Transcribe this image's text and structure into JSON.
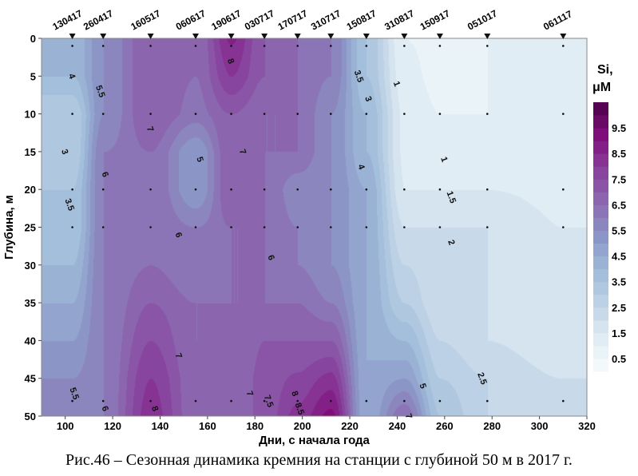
{
  "chart_data": {
    "type": "heatmap",
    "subtype": "filled-contour",
    "xlabel": "Дни, с начала года",
    "ylabel": "Глубина, м",
    "xlim": [
      90,
      320
    ],
    "ylim": [
      50,
      0
    ],
    "x_ticks": [
      100,
      120,
      140,
      160,
      180,
      200,
      220,
      240,
      260,
      280,
      300,
      320
    ],
    "y_ticks": [
      0,
      5,
      10,
      15,
      20,
      25,
      30,
      35,
      40,
      45,
      50
    ],
    "colorbar": {
      "title_line1": "Si,",
      "title_line2": "μM",
      "tick_labels": [
        "0.5",
        "1.5",
        "2.5",
        "3.5",
        "4.5",
        "5.5",
        "6.5",
        "7.5",
        "8.5",
        "9.5"
      ],
      "range": [
        0,
        10.5
      ],
      "step": 0.5,
      "colors": [
        "#f7fcfd",
        "#e0ecf4",
        "#bfd3e6",
        "#9ebcda",
        "#8c96c6",
        "#8c6bb1",
        "#88419d",
        "#810f7c",
        "#4d004b"
      ]
    },
    "stations": [
      {
        "label": "130417",
        "day": 103
      },
      {
        "label": "260417",
        "day": 116
      },
      {
        "label": "160517",
        "day": 136
      },
      {
        "label": "060617",
        "day": 155
      },
      {
        "label": "190617",
        "day": 170
      },
      {
        "label": "030717",
        "day": 184
      },
      {
        "label": "170717",
        "day": 198
      },
      {
        "label": "310717",
        "day": 212
      },
      {
        "label": "150817",
        "day": 227
      },
      {
        "label": "310817",
        "day": 243
      },
      {
        "label": "150917",
        "day": 258
      },
      {
        "label": "051017",
        "day": 278
      },
      {
        "label": "061117",
        "day": 310
      }
    ],
    "depths": [
      0,
      5,
      10,
      15,
      20,
      25,
      30,
      35,
      40,
      45,
      50
    ],
    "profiles": [
      [
        4,
        4,
        3,
        3,
        3.5,
        3.5,
        4,
        4.5,
        5,
        5.5,
        5.5
      ],
      [
        5.5,
        5.5,
        5.5,
        6,
        6,
        6,
        6,
        6,
        6,
        6,
        6
      ],
      [
        7,
        7,
        7,
        6.5,
        6.5,
        6.5,
        6.5,
        7,
        7.5,
        8,
        8.3
      ],
      [
        6.5,
        6.5,
        6.3,
        5,
        5,
        6,
        6,
        6.5,
        6.5,
        6.6,
        6.6
      ],
      [
        8.6,
        8,
        7,
        7,
        7,
        6.5,
        6.5,
        6.5,
        6.5,
        6.5,
        6.5
      ],
      [
        7,
        7,
        6.5,
        6.5,
        6.5,
        6.5,
        6.5,
        6.5,
        7,
        7.2,
        7.2
      ],
      [
        6.5,
        6.5,
        6.5,
        6.5,
        5.6,
        6,
        6,
        6.5,
        7,
        7.6,
        8.2
      ],
      [
        6,
        6,
        5.5,
        5.5,
        5.5,
        5.5,
        5.5,
        6,
        7,
        8.2,
        9.2
      ],
      [
        3.5,
        3.5,
        4,
        4,
        4.5,
        4.5,
        4.5,
        4.5,
        4.5,
        4.5,
        4.5
      ],
      [
        1,
        1.2,
        1.4,
        1.4,
        1.5,
        2,
        2.5,
        3,
        4,
        5,
        6.5
      ],
      [
        0.8,
        0.8,
        1,
        1,
        1.5,
        2,
        2,
        2,
        2.5,
        3,
        3.5
      ],
      [
        1,
        1,
        1,
        1,
        1.5,
        2,
        2,
        2,
        2,
        2.5,
        2.5
      ],
      [
        1,
        1,
        1,
        1,
        1.3,
        1.5,
        1.5,
        1.5,
        1.5,
        2,
        2
      ]
    ],
    "sample_depths": [
      1,
      10,
      20,
      25,
      48
    ],
    "contour_labels": [
      {
        "text": "4",
        "day": 103,
        "depth": 5
      },
      {
        "text": "5.5",
        "day": 115,
        "depth": 7
      },
      {
        "text": "3",
        "day": 100,
        "depth": 15
      },
      {
        "text": "3.5",
        "day": 102,
        "depth": 22
      },
      {
        "text": "6",
        "day": 117,
        "depth": 18
      },
      {
        "text": "7",
        "day": 136,
        "depth": 12
      },
      {
        "text": "6",
        "day": 148,
        "depth": 26
      },
      {
        "text": "5",
        "day": 157,
        "depth": 16
      },
      {
        "text": "8",
        "day": 170,
        "depth": 3
      },
      {
        "text": "7",
        "day": 175,
        "depth": 15
      },
      {
        "text": "6",
        "day": 187,
        "depth": 29
      },
      {
        "text": "3.5",
        "day": 224,
        "depth": 5
      },
      {
        "text": "3",
        "day": 228,
        "depth": 8
      },
      {
        "text": "1",
        "day": 240,
        "depth": 6
      },
      {
        "text": "4",
        "day": 225,
        "depth": 17
      },
      {
        "text": "1",
        "day": 260,
        "depth": 16
      },
      {
        "text": "1.5",
        "day": 263,
        "depth": 21
      },
      {
        "text": "2",
        "day": 263,
        "depth": 27
      },
      {
        "text": "7",
        "day": 148,
        "depth": 42
      },
      {
        "text": "5.5",
        "day": 104,
        "depth": 47
      },
      {
        "text": "6",
        "day": 117,
        "depth": 49
      },
      {
        "text": "8",
        "day": 138,
        "depth": 49
      },
      {
        "text": "7",
        "day": 178,
        "depth": 47
      },
      {
        "text": "7.5",
        "day": 186,
        "depth": 48
      },
      {
        "text": "8",
        "day": 197,
        "depth": 47
      },
      {
        "text": "8.5",
        "day": 199,
        "depth": 49
      },
      {
        "text": "5",
        "day": 251,
        "depth": 46
      },
      {
        "text": "7",
        "day": 245,
        "depth": 50
      },
      {
        "text": "2.5",
        "day": 276,
        "depth": 45
      }
    ]
  },
  "caption": "Рис.46 – Сезонная динамика кремния на станции с глубиной 50 м в 2017 г."
}
